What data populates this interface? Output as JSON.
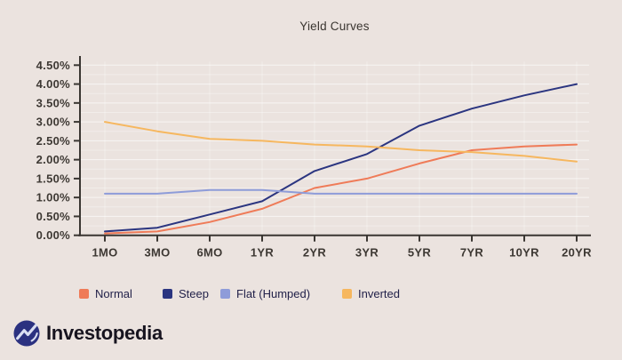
{
  "title": "Yield Curves",
  "brand": {
    "logo_text": "Investopedia"
  },
  "colors": {
    "background": "#ebe3df",
    "axis": "#3a3632",
    "tick_label": "#3d3833",
    "grid_major": "rgba(255,255,255,0.65)",
    "grid_minor": "rgba(255,255,255,0.35)",
    "legend_text": "#23224a",
    "logo_circle": "#2b3180",
    "logo_mark": "#d9def2"
  },
  "chart_data": {
    "type": "line",
    "title": "Yield Curves",
    "categories": [
      "1MO",
      "3MO",
      "6MO",
      "1YR",
      "2YR",
      "3YR",
      "5YR",
      "7YR",
      "10YR",
      "20YR"
    ],
    "y_tick_labels": [
      "4.50%",
      "4.00%",
      "3.50%",
      "3.00%",
      "2.50%",
      "2.00%",
      "1.50%",
      "1.00%",
      "0.50%",
      "0.00%"
    ],
    "ylim": [
      0,
      4.5
    ],
    "y_tick_step": 0.5,
    "grid": true,
    "legend_position": "bottom",
    "xlabel": "",
    "ylabel": "",
    "series": [
      {
        "name": "Normal",
        "color": "#ef7b58",
        "values": [
          0.05,
          0.1,
          0.35,
          0.7,
          1.25,
          1.5,
          1.9,
          2.25,
          2.35,
          2.4
        ]
      },
      {
        "name": "Steep",
        "color": "#2b3580",
        "values": [
          0.1,
          0.2,
          0.55,
          0.9,
          1.7,
          2.15,
          2.9,
          3.35,
          3.7,
          4.0
        ]
      },
      {
        "name": "Flat (Humped)",
        "color": "#8e9cd9",
        "values": [
          1.1,
          1.1,
          1.2,
          1.2,
          1.1,
          1.1,
          1.1,
          1.1,
          1.1,
          1.1
        ]
      },
      {
        "name": "Inverted",
        "color": "#f6b75f",
        "values": [
          3.0,
          2.75,
          2.55,
          2.5,
          2.4,
          2.35,
          2.25,
          2.2,
          2.1,
          1.95
        ]
      }
    ]
  }
}
